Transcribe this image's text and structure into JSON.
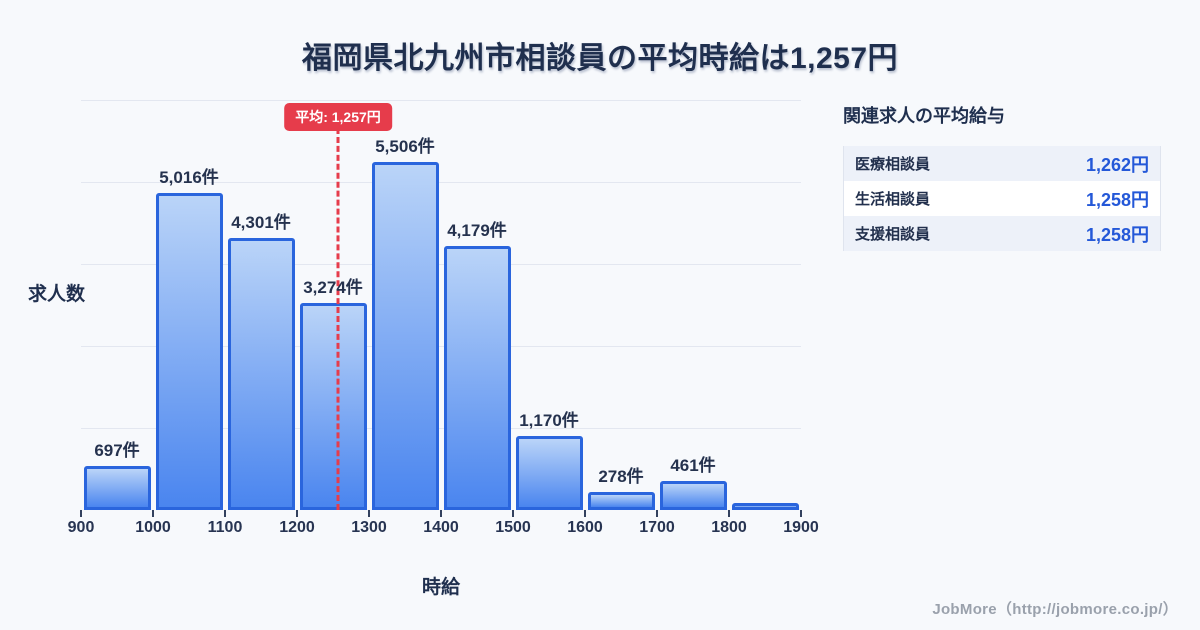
{
  "title": "福岡県北九州市相談員の平均時給は1,257円",
  "chart_data": {
    "type": "bar",
    "title": "福岡県北九州市相談員の平均時給は1,257円",
    "xlabel": "時給",
    "ylabel": "求人数",
    "categories": [
      "900-1000",
      "1000-1100",
      "1100-1200",
      "1200-1300",
      "1300-1400",
      "1400-1500",
      "1500-1600",
      "1600-1700",
      "1700-1800",
      "1800-1900"
    ],
    "values": [
      697,
      5016,
      4301,
      3274,
      5506,
      4179,
      1170,
      278,
      461,
      110
    ],
    "value_labels": [
      "697件",
      "5,016件",
      "4,301件",
      "3,274件",
      "5,506件",
      "4,179件",
      "1,170件",
      "278件",
      "461件",
      ""
    ],
    "x_ticks": [
      900,
      1000,
      1100,
      1200,
      1300,
      1400,
      1500,
      1600,
      1700,
      1800,
      1900
    ],
    "xlim": [
      900,
      1900
    ],
    "ylim": [
      0,
      6480
    ],
    "grid": true,
    "legend": false,
    "mean": {
      "value": 1257,
      "label": "平均: 1,257円"
    },
    "note": "last bin (1800-1900) unlabeled; value estimated from bar height"
  },
  "related_panel": {
    "header": "関連求人の平均給与",
    "rows": [
      {
        "label": "医療相談員",
        "value": "1,262円"
      },
      {
        "label": "生活相談員",
        "value": "1,258円"
      },
      {
        "label": "支援相談員",
        "value": "1,258円"
      }
    ]
  },
  "footer": {
    "credit": "JobMore（http://jobmore.co.jp/）"
  },
  "colors": {
    "bg": "#f7f9fc",
    "navy": "#1f2f4e",
    "grid": "#e3e7f0",
    "red": "#e63c4b",
    "bar-border": "#2a65dd",
    "bar-top": "#bad4f8",
    "bar-bottom": "#4a85ef",
    "value-blue": "#2458d8",
    "stripe": "#edf1f9",
    "table-border": "#dfe4ee",
    "gray": "#9aa1ac"
  }
}
